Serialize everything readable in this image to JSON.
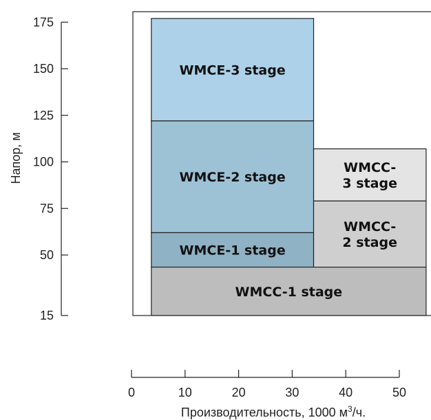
{
  "chart_data": {
    "type": "area",
    "title": "",
    "xlabel": "Производительность, 1000 м",
    "xlabel_sup": "3",
    "xlabel_tail": "/ч.",
    "ylabel": "Напор, м",
    "x_ticks": [
      0,
      10,
      20,
      30,
      40,
      50
    ],
    "y_ticks": [
      "175",
      "150",
      "125",
      "100",
      "75",
      "50",
      "15"
    ],
    "grid": false,
    "legend": "none",
    "regions": [
      {
        "label": [
          "WMCE-3 stage"
        ],
        "x_range": [
          3.7,
          34
        ],
        "y_range": [
          122,
          177
        ],
        "color": "#acd1e8"
      },
      {
        "label": [
          "WMCE-2 stage"
        ],
        "x_range": [
          3.7,
          34
        ],
        "y_range": [
          62,
          122
        ],
        "color": "#9dc2d6"
      },
      {
        "label": [
          "WMCE-1 stage"
        ],
        "x_range": [
          3.7,
          34
        ],
        "y_range": [
          43,
          62
        ],
        "color": "#8fb2c4"
      },
      {
        "label": [
          "WMCC-3 stage"
        ],
        "x_range": [
          34,
          55
        ],
        "y_range": [
          79,
          107
        ],
        "color": "#e4e4e4"
      },
      {
        "label": [
          "WMCC-2 stage"
        ],
        "x_range": [
          34,
          55
        ],
        "y_range": [
          43,
          79
        ],
        "color": "#cfcfcf"
      },
      {
        "label": [
          "WMCC-1 stage"
        ],
        "x_range": [
          3.7,
          55
        ],
        "y_range": [
          15,
          43
        ],
        "color": "#bdbdbd"
      }
    ]
  },
  "region_text": [
    {
      "lines": [
        "WMCE-3 stage"
      ]
    },
    {
      "lines": [
        "WMCE-2 stage"
      ]
    },
    {
      "lines": [
        "WMCE-1 stage"
      ]
    },
    {
      "lines": [
        "WMCC-",
        "3 stage"
      ]
    },
    {
      "lines": [
        "WMCC-",
        "2 stage"
      ]
    },
    {
      "lines": [
        "WMCC-1 stage"
      ]
    }
  ]
}
